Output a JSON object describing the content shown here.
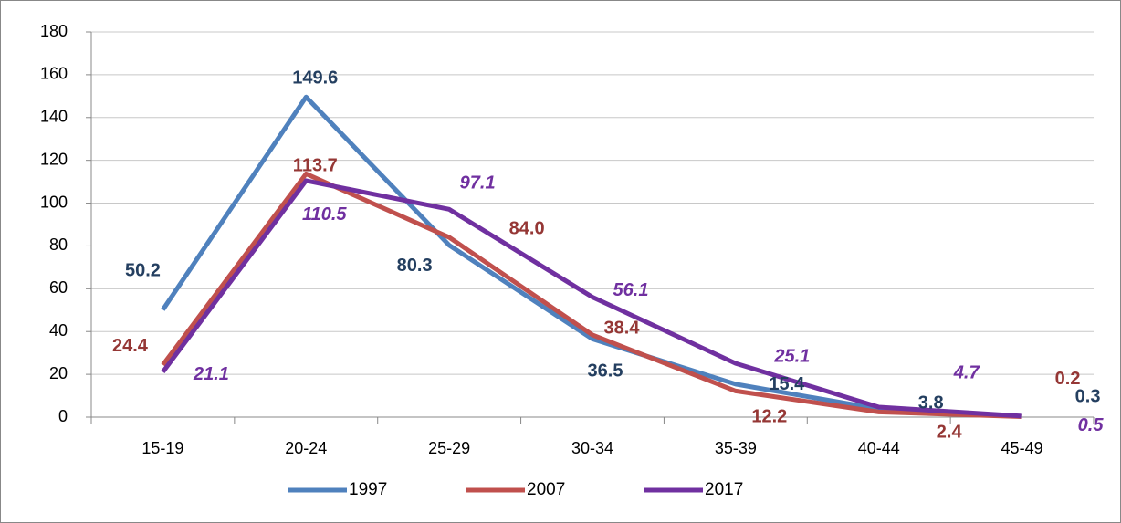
{
  "chart_data": {
    "type": "line",
    "categories": [
      "15-19",
      "20-24",
      "25-29",
      "30-34",
      "35-39",
      "40-44",
      "45-49"
    ],
    "series": [
      {
        "name": "1997",
        "color": "#4f81bd",
        "label_color": "#243f60",
        "values": [
          50.2,
          149.6,
          80.3,
          36.5,
          15.4,
          3.8,
          0.3
        ],
        "value_labels": [
          "50.2",
          "149.6",
          "80.3",
          "36.5",
          "15.4",
          "3.8",
          "0.3"
        ]
      },
      {
        "name": "2007",
        "color": "#c0504d",
        "label_color": "#953735",
        "values": [
          24.4,
          113.7,
          84.0,
          38.4,
          12.2,
          2.4,
          0.2
        ],
        "value_labels": [
          "24.4",
          "113.7",
          "84.0",
          "38.4",
          "12.2",
          "2.4",
          "0.2"
        ]
      },
      {
        "name": "2017",
        "color": "#7030a0",
        "label_color": "#7030a0",
        "values": [
          21.1,
          110.5,
          97.1,
          56.1,
          25.1,
          4.7,
          0.5
        ],
        "value_labels": [
          "21.1",
          "110.5",
          "97.1",
          "56.1",
          "25.1",
          "4.7",
          "0.5"
        ]
      }
    ],
    "ylim": [
      0,
      180
    ],
    "yticks": [
      0,
      20,
      40,
      60,
      80,
      100,
      120,
      140,
      160,
      180
    ],
    "grid": true,
    "legend": "bottom"
  }
}
